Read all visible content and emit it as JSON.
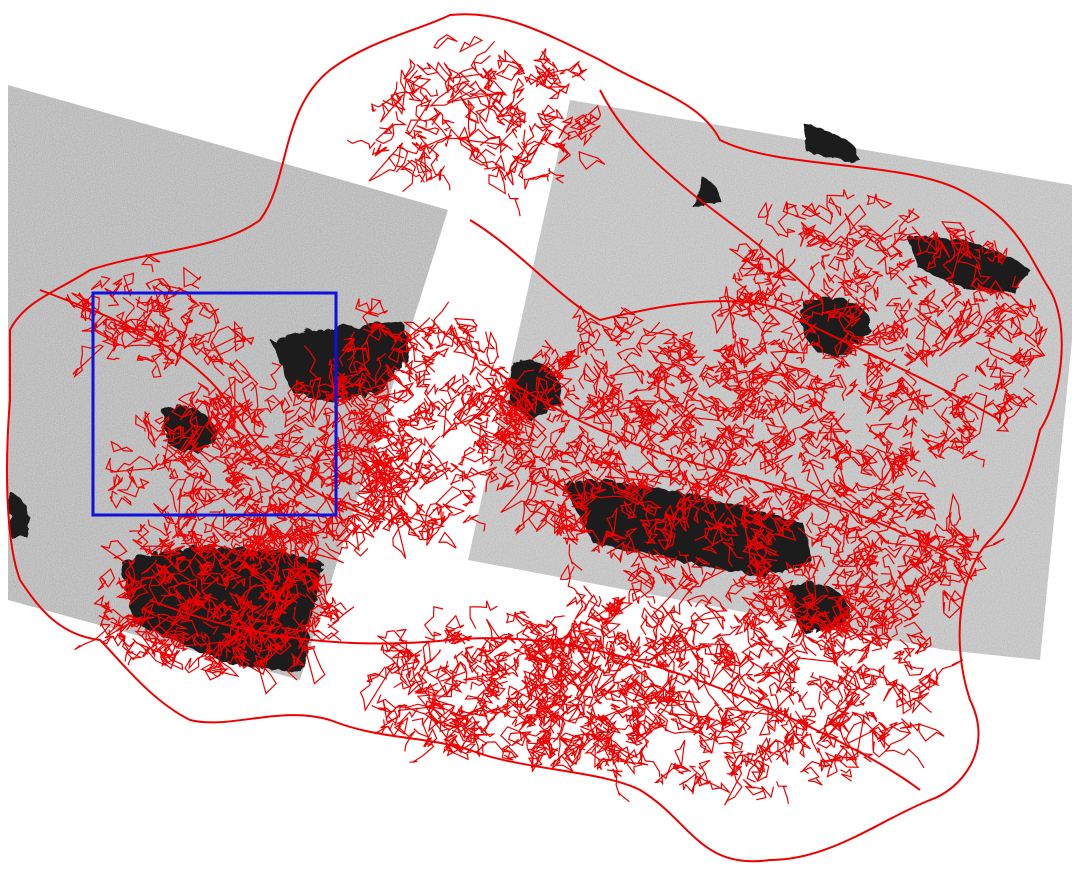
{
  "map": {
    "layers": [
      {
        "id": "raster-scene-left",
        "kind": "grayscale satellite scene"
      },
      {
        "id": "raster-scene-right",
        "kind": "grayscale satellite scene"
      },
      {
        "id": "vector-boundaries",
        "kind": "polygon outlines"
      },
      {
        "id": "area-of-interest",
        "kind": "rectangle"
      }
    ],
    "colors": {
      "background": "#ffffff",
      "raster_light": "#bdbdbd",
      "raster_dark": "#1d1d1d",
      "boundary_outline": "#ee0000",
      "area_of_interest": "#1010e0"
    }
  }
}
